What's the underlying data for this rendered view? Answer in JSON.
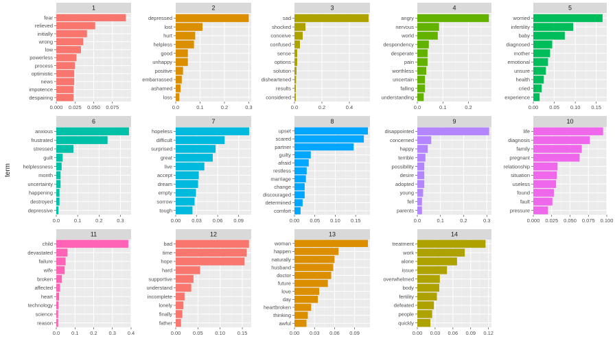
{
  "y_axis_label": "term",
  "chart_data": [
    {
      "type": "bar",
      "title": "1",
      "color": "#F8766D",
      "xlim": [
        0,
        0.1
      ],
      "xticks": [
        0,
        0.025,
        0.05,
        0.075
      ],
      "xtick_labels": [
        "0.000",
        "0.025",
        "0.050",
        "0.075"
      ],
      "categories": [
        "fear",
        "relieved",
        "initially",
        "wrong",
        "low",
        "powerless",
        "process",
        "optimistic",
        "news",
        "impotence",
        "despairing"
      ],
      "values": [
        0.093,
        0.052,
        0.041,
        0.036,
        0.033,
        0.027,
        0.025,
        0.024,
        0.024,
        0.023,
        0.023
      ]
    },
    {
      "type": "bar",
      "title": "2",
      "color": "#DB8E00",
      "xlim": [
        0,
        0.31
      ],
      "xticks": [
        0,
        0.1,
        0.2,
        0.3
      ],
      "xtick_labels": [
        "0.0",
        "0.1",
        "0.2",
        "0.3"
      ],
      "categories": [
        "depressed",
        "lost",
        "hurt",
        "helpless",
        "good",
        "unhappy",
        "positive",
        "embarrassed",
        "ashamed",
        "loss"
      ],
      "values": [
        0.3,
        0.11,
        0.08,
        0.075,
        0.05,
        0.05,
        0.03,
        0.025,
        0.02,
        0.015
      ]
    },
    {
      "type": "bar",
      "title": "3",
      "color": "#AEA200",
      "xlim": [
        0,
        0.55
      ],
      "xticks": [
        0,
        0.2,
        0.4
      ],
      "xtick_labels": [
        "0.0",
        "0.2",
        "0.4"
      ],
      "categories": [
        "sad",
        "shocked",
        "conceive",
        "confused",
        "sense",
        "options",
        "solution",
        "disheartened",
        "results",
        "considered"
      ],
      "values": [
        0.54,
        0.08,
        0.06,
        0.04,
        0.02,
        0.02,
        0.015,
        0.012,
        0.01,
        0.01
      ]
    },
    {
      "type": "bar",
      "title": "4",
      "color": "#64B200",
      "xlim": [
        0,
        0.29
      ],
      "xticks": [
        0,
        0.1,
        0.2
      ],
      "xtick_labels": [
        "0.0",
        "0.1",
        "0.2"
      ],
      "categories": [
        "angry",
        "nervous",
        "world",
        "despondency",
        "desperate",
        "pain",
        "worthless",
        "uncertain",
        "falling",
        "understanding"
      ],
      "values": [
        0.28,
        0.085,
        0.08,
        0.045,
        0.04,
        0.04,
        0.035,
        0.03,
        0.03,
        0.025
      ]
    },
    {
      "type": "bar",
      "title": "5",
      "color": "#00BD5C",
      "xlim": [
        0,
        0.175
      ],
      "xticks": [
        0,
        0.05,
        0.1,
        0.15
      ],
      "xtick_labels": [
        "0.00",
        "0.05",
        "0.10",
        "0.15"
      ],
      "categories": [
        "worried",
        "infertility",
        "baby",
        "diagnosed",
        "mother",
        "emotional",
        "unsure",
        "health",
        "cried",
        "experience"
      ],
      "values": [
        0.165,
        0.095,
        0.075,
        0.045,
        0.04,
        0.035,
        0.03,
        0.025,
        0.02,
        0.015
      ]
    },
    {
      "type": "bar",
      "title": "6",
      "color": "#00C1A7",
      "xlim": [
        0,
        0.35
      ],
      "xticks": [
        0,
        0.1,
        0.2,
        0.3
      ],
      "xtick_labels": [
        "0.0",
        "0.1",
        "0.2",
        "0.3"
      ],
      "categories": [
        "anxious",
        "frustrated",
        "stressed",
        "guilt",
        "helplessness",
        "month",
        "uncertainty",
        "happening",
        "destroyed",
        "depressive"
      ],
      "values": [
        0.34,
        0.24,
        0.08,
        0.03,
        0.025,
        0.02,
        0.02,
        0.015,
        0.015,
        0.01
      ]
    },
    {
      "type": "bar",
      "title": "7",
      "color": "#00BADE",
      "xlim": [
        0,
        0.108
      ],
      "xticks": [
        0,
        0.03,
        0.06,
        0.09
      ],
      "xtick_labels": [
        "0.00",
        "0.03",
        "0.06",
        "0.09"
      ],
      "categories": [
        "hopeless",
        "difficult",
        "surprised",
        "great",
        "live",
        "accept",
        "dream",
        "empty",
        "sorrow",
        "tough"
      ],
      "values": [
        0.105,
        0.07,
        0.057,
        0.053,
        0.041,
        0.033,
        0.032,
        0.029,
        0.027,
        0.024
      ]
    },
    {
      "type": "bar",
      "title": "8",
      "color": "#00A6FF",
      "xlim": [
        0,
        0.185
      ],
      "xticks": [
        0,
        0.05,
        0.1,
        0.15
      ],
      "xtick_labels": [
        "0.00",
        "0.05",
        "0.10",
        "0.15"
      ],
      "categories": [
        "upset",
        "scared",
        "partner",
        "guilty",
        "afraid",
        "restless",
        "marriage",
        "change",
        "discouraged",
        "determined",
        "comfort"
      ],
      "values": [
        0.18,
        0.17,
        0.145,
        0.04,
        0.035,
        0.03,
        0.028,
        0.025,
        0.025,
        0.02,
        0.015
      ]
    },
    {
      "type": "bar",
      "title": "9",
      "color": "#B385FF",
      "xlim": [
        0,
        0.32
      ],
      "xticks": [
        0,
        0.1,
        0.2,
        0.3
      ],
      "xtick_labels": [
        "0.0",
        "0.1",
        "0.2",
        "0.3"
      ],
      "categories": [
        "disappointed",
        "concerned",
        "happy",
        "terrible",
        "possibility",
        "desire",
        "adopted",
        "young",
        "fell",
        "parents"
      ],
      "values": [
        0.31,
        0.06,
        0.045,
        0.035,
        0.03,
        0.03,
        0.03,
        0.025,
        0.02,
        0.02
      ]
    },
    {
      "type": "bar",
      "title": "10",
      "color": "#EF67EB",
      "xlim": [
        0,
        0.1
      ],
      "xticks": [
        0,
        0.025,
        0.05,
        0.075,
        0.1
      ],
      "xtick_labels": [
        "0.000",
        "0.025",
        "0.050",
        "0.075",
        "0.100"
      ],
      "categories": [
        "life",
        "diagnosis",
        "family",
        "pregnant",
        "relationship",
        "situation",
        "useless",
        "found",
        "fault",
        "pressure"
      ],
      "values": [
        0.095,
        0.077,
        0.066,
        0.063,
        0.033,
        0.032,
        0.031,
        0.028,
        0.026,
        0.02
      ]
    },
    {
      "type": "bar",
      "title": "11",
      "color": "#FF63B6",
      "xlim": [
        0,
        0.4
      ],
      "xticks": [
        0,
        0.1,
        0.2,
        0.3,
        0.4
      ],
      "xtick_labels": [
        "0.0",
        "0.1",
        "0.2",
        "0.3",
        "0.4"
      ],
      "categories": [
        "child",
        "devastated",
        "failure",
        "wife",
        "broken",
        "affected",
        "heart",
        "technology",
        "science",
        "reason"
      ],
      "values": [
        0.385,
        0.06,
        0.05,
        0.045,
        0.03,
        0.02,
        0.015,
        0.012,
        0.01,
        0.01
      ]
    },
    {
      "type": "bar",
      "title": "12",
      "color": "#F8766D",
      "xlim": [
        0,
        0.17
      ],
      "xticks": [
        0,
        0.05,
        0.1,
        0.15
      ],
      "xtick_labels": [
        "0.00",
        "0.05",
        "0.10",
        "0.15"
      ],
      "categories": [
        "bad",
        "time",
        "hope",
        "hard",
        "supportive",
        "understand",
        "incomplete",
        "lonely",
        "finally",
        "father"
      ],
      "values": [
        0.165,
        0.16,
        0.155,
        0.055,
        0.04,
        0.035,
        0.02,
        0.017,
        0.015,
        0.012
      ]
    },
    {
      "type": "bar",
      "title": "13",
      "color": "#DB8E00",
      "xlim": [
        0,
        0.113
      ],
      "xticks": [
        0,
        0.03,
        0.06,
        0.09
      ],
      "xtick_labels": [
        "0.00",
        "0.03",
        "0.06",
        "0.09"
      ],
      "categories": [
        "woman",
        "happen",
        "naturally",
        "husband",
        "doctor",
        "future",
        "love",
        "day",
        "heartbroken",
        "thinking",
        "awful"
      ],
      "values": [
        0.11,
        0.066,
        0.06,
        0.058,
        0.055,
        0.05,
        0.037,
        0.035,
        0.025,
        0.02,
        0.018
      ]
    },
    {
      "type": "bar",
      "title": "14",
      "color": "#AEA200",
      "xlim": [
        0,
        0.125
      ],
      "xticks": [
        0,
        0.03,
        0.06,
        0.09,
        0.12
      ],
      "xtick_labels": [
        "0.00",
        "0.03",
        "0.06",
        "0.09",
        "0.12"
      ],
      "categories": [
        "treatment",
        "work",
        "alone",
        "issue",
        "overwhelmed",
        "body",
        "fertility",
        "defeated",
        "people",
        "quickly"
      ],
      "values": [
        0.115,
        0.08,
        0.067,
        0.05,
        0.038,
        0.037,
        0.033,
        0.028,
        0.025,
        0.022
      ]
    }
  ]
}
